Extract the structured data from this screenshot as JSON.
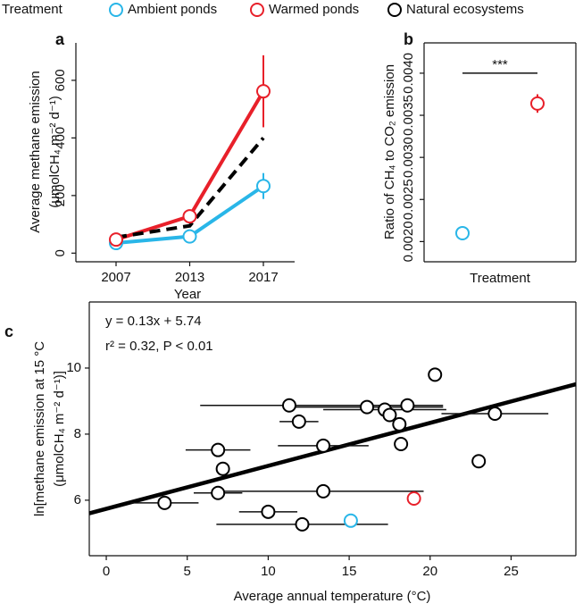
{
  "legend_title": "Treatment",
  "chart_data": [
    {
      "type": "line",
      "panel": "a",
      "categories": [
        "2007",
        "2013",
        "2017"
      ],
      "xlabel": "Year",
      "ylabel": [
        "Average methane emission",
        "(μmolCH₄ m⁻² d⁻¹)"
      ],
      "ylim": [
        -30,
        730
      ],
      "yticks": [
        0,
        200,
        400,
        600
      ],
      "series": [
        {
          "name": "Ambient ponds",
          "color": "#29b6e8",
          "values": [
            35,
            58,
            233
          ],
          "errors": [
            null,
            null,
            45
          ]
        },
        {
          "name": "Warmed ponds",
          "color": "#e8202a",
          "values": [
            47,
            128,
            562
          ],
          "errors": [
            null,
            null,
            125
          ]
        },
        {
          "name": "Natural ecosystems",
          "color": "#000000",
          "values": [
            55,
            95,
            400
          ],
          "dashed": true
        }
      ]
    },
    {
      "type": "scatter",
      "panel": "b",
      "xlabel": "Treatment",
      "ylabel": "Ratio of CH₄ to CO₂ emission",
      "ylim": [
        0.00176,
        0.00436
      ],
      "yticks": [
        {
          "value": 0.002,
          "label": "0.0020"
        },
        {
          "value": 0.0025,
          "label": "0.0025"
        },
        {
          "value": 0.003,
          "label": "0.0030"
        },
        {
          "value": 0.0035,
          "label": "0.0035"
        },
        {
          "value": 0.004,
          "label": "0.0040"
        }
      ],
      "values": [
        0.0021,
        0.00364
      ],
      "errors": [
        null,
        0.00011
      ],
      "colors": [
        "#29b6e8",
        "#e8202a"
      ],
      "annotation": "***"
    },
    {
      "type": "scatter",
      "panel": "c",
      "xlabel": "Average annual temperature (°C)",
      "ylabel": [
        "ln[methane emission at 15 °C",
        "(μmolCH₄ m⁻² d⁻¹)]"
      ],
      "xlim": [
        -1.05,
        29
      ],
      "xticks": [
        0,
        5,
        10,
        15,
        20,
        25
      ],
      "ylim": [
        4.32,
        12
      ],
      "yticks": [
        6,
        8,
        10
      ],
      "annotations": [
        "y = 0.13x + 5.74",
        "r² = 0.32, P < 0.01"
      ],
      "fit": {
        "slope": 0.13,
        "intercept": 5.74
      },
      "series": [
        {
          "color": "#29b6e8",
          "x": [
            15.1
          ],
          "values": [
            5.38
          ],
          "xerr": [
            null
          ]
        },
        {
          "color": "#e8202a",
          "x": [
            19.0
          ],
          "values": [
            6.05
          ],
          "xerr": [
            null
          ]
        },
        {
          "color": "#000000",
          "x": [
            3.6,
            12.1,
            10.0,
            13.4,
            6.9,
            7.2,
            6.9,
            13.4,
            18.2,
            23.0,
            24.0,
            20.3,
            11.3,
            11.9,
            16.1,
            17.2,
            17.5,
            18.1,
            18.6
          ],
          "values": [
            5.92,
            5.27,
            5.65,
            6.27,
            6.22,
            6.95,
            7.52,
            7.65,
            7.7,
            7.18,
            8.62,
            9.8,
            8.87,
            8.38,
            8.82,
            8.74,
            8.58,
            8.3,
            8.87
          ],
          "xerr": [
            2.1,
            5.3,
            1.8,
            6.2,
            1.5,
            null,
            2.0,
            2.8,
            null,
            null,
            3.3,
            null,
            5.5,
            1.2,
            4.7,
            3.8,
            null,
            null,
            2.2
          ]
        }
      ]
    }
  ]
}
